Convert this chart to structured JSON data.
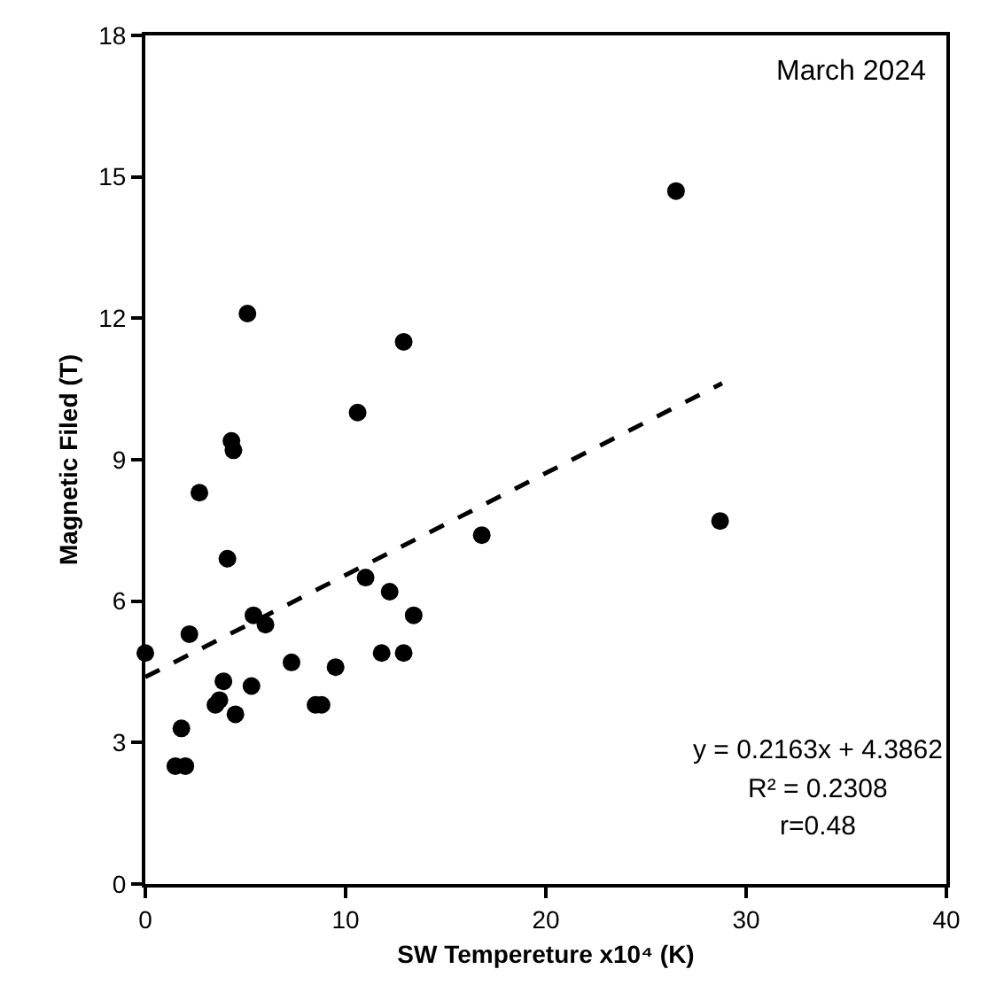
{
  "chart_data": {
    "type": "scatter",
    "xlabel": "SW Tempereture x10⁴ (K)",
    "ylabel": "Magnetic Filed (T)",
    "xlim": [
      0,
      40
    ],
    "xticks": [
      0,
      10,
      20,
      30,
      40
    ],
    "ylim": [
      0,
      18
    ],
    "yticks": [
      0,
      3,
      6,
      9,
      12,
      15,
      18
    ],
    "grid": false,
    "marker": "circle",
    "annotations": [
      "March 2024",
      "y = 0.2163x + 4.3862",
      "R² = 0.2308",
      "r=0.48"
    ],
    "series": [
      {
        "color": "#000000",
        "x": [
          0,
          1.5,
          2,
          1.8,
          2.2,
          2.7,
          3.5,
          3.7,
          3.9,
          4.1,
          4.3,
          4.4,
          4.5,
          5.1,
          5.3,
          5.4,
          6,
          7.3,
          8.5,
          8.8,
          9.5,
          10.6,
          11,
          11.8,
          12.2,
          12.9,
          12.9,
          13.4,
          16.8,
          26.5,
          28.7
        ],
        "values": [
          4.9,
          2.5,
          2.5,
          3.3,
          5.3,
          8.3,
          3.8,
          3.9,
          4.3,
          6.9,
          9.4,
          9.2,
          3.6,
          12.1,
          4.2,
          5.7,
          5.5,
          4.7,
          3.8,
          3.8,
          4.6,
          10,
          6.5,
          4.9,
          6.2,
          11.5,
          4.9,
          5.7,
          7.4,
          14.7,
          7.7
        ]
      },
      {
        "type": "line",
        "color": "#000000",
        "line_style": "dashed",
        "marker": "none",
        "x": [
          0,
          28.8
        ],
        "values": [
          4.39,
          10.62
        ]
      }
    ]
  }
}
